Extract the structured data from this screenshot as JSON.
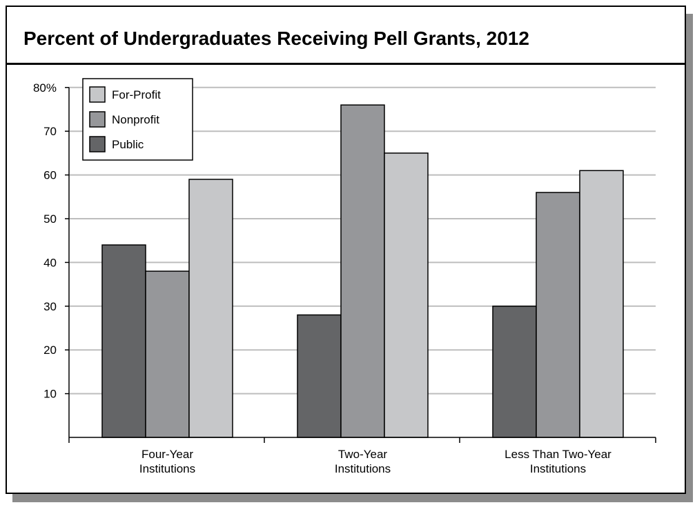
{
  "title": "Percent of Undergraduates Receiving Pell Grants, 2012",
  "colors": {
    "For-Profit": "#c6c7c9",
    "Nonprofit": "#96979a",
    "Public": "#646567"
  },
  "chart_data": {
    "type": "bar",
    "title": "Percent of Undergraduates Receiving Pell Grants, 2012",
    "xlabel": "",
    "ylabel": "",
    "ylim": [
      0,
      80
    ],
    "yticks": [
      10,
      20,
      30,
      40,
      50,
      60,
      70,
      80
    ],
    "ytick_labels": [
      "10",
      "20",
      "30",
      "40",
      "50",
      "60",
      "70",
      "80%"
    ],
    "grid": true,
    "legend_position": "top-left",
    "legend_order": [
      "For-Profit",
      "Nonprofit",
      "Public"
    ],
    "categories": [
      [
        "Four-Year",
        "Institutions"
      ],
      [
        "Two-Year",
        "Institutions"
      ],
      [
        "Less Than Two-Year",
        "Institutions"
      ]
    ],
    "series": [
      {
        "name": "Public",
        "values": [
          44,
          28,
          30
        ]
      },
      {
        "name": "Nonprofit",
        "values": [
          38,
          76,
          56
        ]
      },
      {
        "name": "For-Profit",
        "values": [
          59,
          65,
          61
        ]
      }
    ]
  }
}
